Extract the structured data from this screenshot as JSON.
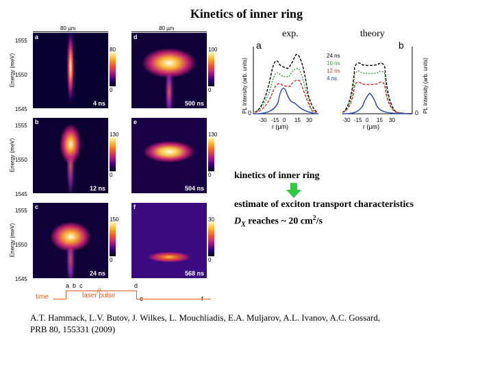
{
  "title": "Kinetics of inner ring",
  "left_figure": {
    "scale_label": "80 µm",
    "y_axis_label": "Energy (meV)",
    "y_ticks": [
      "1555",
      "1550",
      "1545"
    ],
    "panels": [
      {
        "letter": "a",
        "time": "4 ns",
        "cbar_max": "80",
        "cbar_min": "0"
      },
      {
        "letter": "d",
        "time": "500 ns",
        "cbar_max": "100",
        "cbar_min": "0"
      },
      {
        "letter": "b",
        "time": "12 ns",
        "cbar_max": "130",
        "cbar_min": "0"
      },
      {
        "letter": "e",
        "time": "504 ns",
        "cbar_max": "130",
        "cbar_min": "0"
      },
      {
        "letter": "c",
        "time": "24 ns",
        "cbar_max": "150",
        "cbar_min": "0"
      },
      {
        "letter": "f",
        "time": "568 ns",
        "cbar_max": "30",
        "cbar_min": "0"
      }
    ],
    "timeline": {
      "time_label": "time",
      "pulse_label": "laser pulse",
      "marks": [
        "a",
        "b",
        "c",
        "d",
        "e",
        "f"
      ]
    }
  },
  "right_figure": {
    "exp_label": "exp.",
    "theory_label": "theory",
    "panel_a": "a",
    "panel_b": "b",
    "y_label": "PL Intensity (arb. units)",
    "x_label": "r (µm)",
    "x_ticks": [
      "-30",
      "-15",
      "0",
      "15",
      "30"
    ],
    "y_zero": "0",
    "legend": [
      {
        "label": "24 ns",
        "color": "#000000"
      },
      {
        "label": "16 ns",
        "color": "#2ca02c"
      },
      {
        "label": "12 ns",
        "color": "#d62728"
      },
      {
        "label": "4 ns",
        "color": "#1f3fbf"
      }
    ]
  },
  "text": {
    "line1": "kinetics of inner ring",
    "line2": "estimate of exciton transport characteristics",
    "line3_prefix": "D",
    "line3_sub": "X",
    "line3_suffix": " reaches ~ 20 cm",
    "line3_sup": "2",
    "line3_end": "/s",
    "arrow_color": "#2ecc40"
  },
  "reference": {
    "line1": "A.T. Hammack, L.V. Butov, J. Wilkes, L. Mouchliadis, E.A. Muljarov, A.L. Ivanov, A.C. Gossard,",
    "line2": "PRB 80, 155331 (2009)"
  }
}
